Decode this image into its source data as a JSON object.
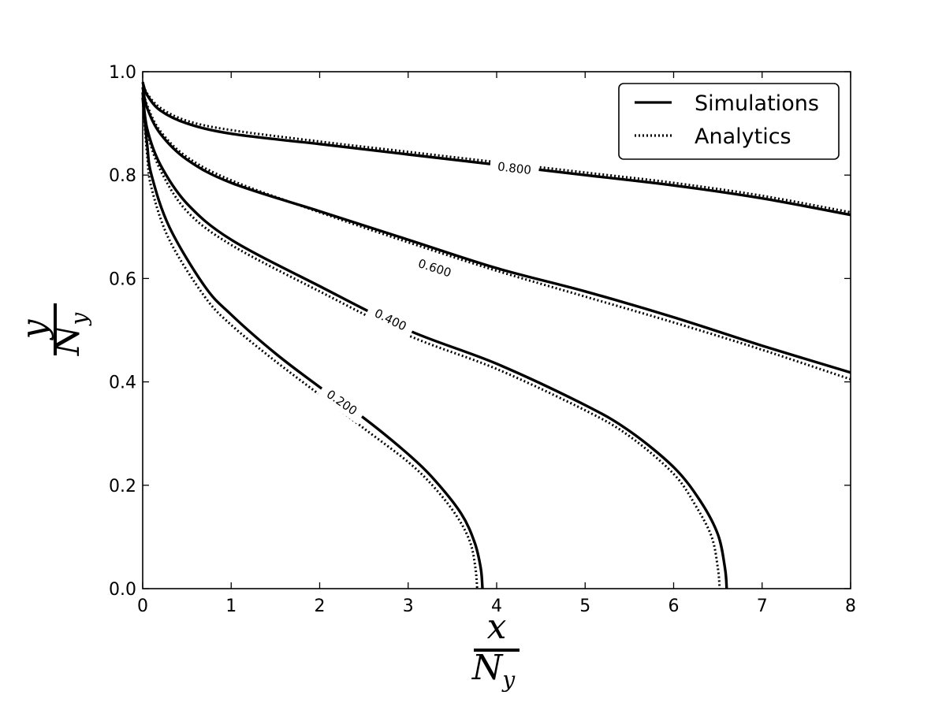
{
  "chart_data": {
    "type": "line",
    "xlabel": {
      "numerator": "x",
      "denominator": "N",
      "subscript": "y"
    },
    "ylabel": {
      "numerator": "y",
      "denominator": "N",
      "subscript": "y"
    },
    "xlim": [
      0,
      8
    ],
    "ylim": [
      0.0,
      1.0
    ],
    "xticks": [
      "0",
      "1",
      "2",
      "3",
      "4",
      "5",
      "6",
      "7",
      "8"
    ],
    "yticks": [
      "0.0",
      "0.2",
      "0.4",
      "0.6",
      "0.8",
      "1.0"
    ],
    "grid": false,
    "legend": {
      "placement": "top-right",
      "entries": [
        {
          "name": "Simulations",
          "style": "solid"
        },
        {
          "name": "Analytics",
          "style": "dotted"
        }
      ]
    },
    "contours": [
      {
        "level": "0.800",
        "label_at": [
          4.2,
          0.813
        ],
        "simulation": [
          [
            0,
            0.98
          ],
          [
            0.05,
            0.955
          ],
          [
            0.2,
            0.925
          ],
          [
            0.5,
            0.9
          ],
          [
            1,
            0.88
          ],
          [
            2,
            0.86
          ],
          [
            3,
            0.84
          ],
          [
            4,
            0.82
          ],
          [
            5,
            0.8
          ],
          [
            6,
            0.78
          ],
          [
            7,
            0.755
          ],
          [
            8,
            0.723
          ]
        ],
        "analytic": [
          [
            0,
            0.98
          ],
          [
            0.05,
            0.958
          ],
          [
            0.2,
            0.93
          ],
          [
            0.5,
            0.905
          ],
          [
            1,
            0.887
          ],
          [
            2,
            0.865
          ],
          [
            3,
            0.845
          ],
          [
            4,
            0.825
          ],
          [
            5,
            0.805
          ],
          [
            6,
            0.785
          ],
          [
            7,
            0.76
          ],
          [
            8,
            0.728
          ]
        ]
      },
      {
        "level": "0.600",
        "label_at": [
          3.3,
          0.62
        ],
        "simulation": [
          [
            0,
            0.97
          ],
          [
            0.05,
            0.93
          ],
          [
            0.2,
            0.88
          ],
          [
            0.5,
            0.83
          ],
          [
            1,
            0.785
          ],
          [
            2,
            0.73
          ],
          [
            3,
            0.675
          ],
          [
            4,
            0.62
          ],
          [
            5,
            0.575
          ],
          [
            6,
            0.525
          ],
          [
            7,
            0.47
          ],
          [
            8,
            0.418
          ]
        ],
        "analytic": [
          [
            0,
            0.97
          ],
          [
            0.05,
            0.935
          ],
          [
            0.2,
            0.885
          ],
          [
            0.5,
            0.835
          ],
          [
            1,
            0.79
          ],
          [
            2,
            0.728
          ],
          [
            3,
            0.67
          ],
          [
            4,
            0.615
          ],
          [
            5,
            0.565
          ],
          [
            6,
            0.515
          ],
          [
            7,
            0.462
          ],
          [
            8,
            0.405
          ]
        ]
      },
      {
        "level": "0.400",
        "label_at": [
          2.8,
          0.52
        ],
        "simulation": [
          [
            0,
            0.96
          ],
          [
            0.05,
            0.89
          ],
          [
            0.2,
            0.82
          ],
          [
            0.5,
            0.745
          ],
          [
            1,
            0.675
          ],
          [
            2,
            0.585
          ],
          [
            3,
            0.5
          ],
          [
            4,
            0.435
          ],
          [
            5,
            0.355
          ],
          [
            5.5,
            0.305
          ],
          [
            6,
            0.235
          ],
          [
            6.3,
            0.17
          ],
          [
            6.5,
            0.105
          ],
          [
            6.58,
            0.04
          ],
          [
            6.6,
            0.0
          ]
        ],
        "analytic": [
          [
            0,
            0.96
          ],
          [
            0.05,
            0.885
          ],
          [
            0.2,
            0.81
          ],
          [
            0.5,
            0.73
          ],
          [
            1,
            0.665
          ],
          [
            2,
            0.575
          ],
          [
            3,
            0.49
          ],
          [
            4,
            0.425
          ],
          [
            5,
            0.345
          ],
          [
            5.5,
            0.295
          ],
          [
            6,
            0.222
          ],
          [
            6.25,
            0.16
          ],
          [
            6.43,
            0.1
          ],
          [
            6.5,
            0.04
          ],
          [
            6.52,
            0.0
          ]
        ]
      },
      {
        "level": "0.200",
        "label_at": [
          2.25,
          0.36
        ],
        "simulation": [
          [
            0,
            0.95
          ],
          [
            0.05,
            0.86
          ],
          [
            0.1,
            0.8
          ],
          [
            0.3,
            0.7
          ],
          [
            0.7,
            0.585
          ],
          [
            1,
            0.53
          ],
          [
            1.5,
            0.455
          ],
          [
            2,
            0.39
          ],
          [
            2.5,
            0.33
          ],
          [
            3,
            0.26
          ],
          [
            3.3,
            0.21
          ],
          [
            3.6,
            0.145
          ],
          [
            3.75,
            0.09
          ],
          [
            3.82,
            0.04
          ],
          [
            3.84,
            0.0
          ]
        ],
        "analytic": [
          [
            0,
            0.95
          ],
          [
            0.05,
            0.84
          ],
          [
            0.1,
            0.775
          ],
          [
            0.3,
            0.675
          ],
          [
            0.7,
            0.565
          ],
          [
            1,
            0.51
          ],
          [
            1.5,
            0.44
          ],
          [
            2,
            0.375
          ],
          [
            2.5,
            0.31
          ],
          [
            3,
            0.245
          ],
          [
            3.3,
            0.195
          ],
          [
            3.55,
            0.14
          ],
          [
            3.7,
            0.09
          ],
          [
            3.76,
            0.04
          ],
          [
            3.78,
            0.0
          ]
        ]
      }
    ]
  }
}
